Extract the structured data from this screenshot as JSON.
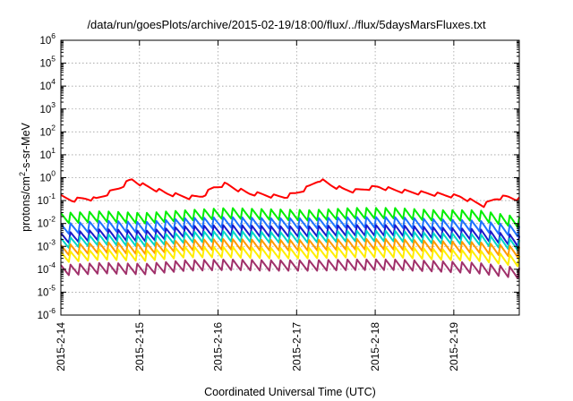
{
  "chart_data": {
    "type": "line",
    "title": "/data/run/goesPlots/archive/2015-02-19/18:00/flux/../flux/5daysMarsFluxes.txt",
    "xlabel": "Coordinated Universal Time (UTC)",
    "ylabel": "protons/cm2-s-sr-MeV",
    "ylabel_parts": {
      "pre": "protons/cm",
      "sup": "2",
      "post": "-s-sr-MeV"
    },
    "y_scale": "log",
    "ylim_exp": [
      -6,
      6
    ],
    "y_ticks": [
      {
        "base": "10",
        "exp": "-6"
      },
      {
        "base": "10",
        "exp": "-5"
      },
      {
        "base": "10",
        "exp": "-4"
      },
      {
        "base": "10",
        "exp": "-3"
      },
      {
        "base": "10",
        "exp": "-2"
      },
      {
        "base": "10",
        "exp": "-1"
      },
      {
        "base": "10",
        "exp": "0"
      },
      {
        "base": "10",
        "exp": "1"
      },
      {
        "base": "10",
        "exp": "2"
      },
      {
        "base": "10",
        "exp": "3"
      },
      {
        "base": "10",
        "exp": "4"
      },
      {
        "base": "10",
        "exp": "5"
      },
      {
        "base": "10",
        "exp": "6"
      }
    ],
    "x_start": "2015-02-14",
    "x_end": "2015-02-19T20:00",
    "x_ticks": [
      "2015-2-14",
      "2015-2-15",
      "2015-2-16",
      "2015-2-17",
      "2015-2-18",
      "2015-2-19"
    ],
    "grid": true,
    "series": [
      {
        "color": "#ff0000",
        "base": 0.13,
        "amp": 0.07,
        "pulses": 28,
        "bumps": [
          [
            0.8,
            0.8
          ],
          [
            1.4,
            0.45
          ],
          [
            2.9,
            0.8
          ]
        ],
        "values": [
          0.14,
          0.1,
          0.12,
          0.11,
          0.2,
          0.35,
          0.8,
          0.45,
          0.3,
          0.2,
          0.16,
          0.13,
          0.15,
          0.35,
          0.5,
          0.3,
          0.2,
          0.18,
          0.15,
          0.14,
          0.2,
          0.35,
          0.8,
          0.45,
          0.3,
          0.25,
          0.32,
          0.38,
          0.3,
          0.25,
          0.22,
          0.2,
          0.18,
          0.16,
          0.14,
          0.09,
          0.06,
          0.12,
          0.14,
          0.11
        ]
      },
      {
        "color": "#00ee00",
        "base": 0.012,
        "amp": 0.008,
        "pulses": 48,
        "values": [
          0.015,
          0.018,
          0.015,
          0.02,
          0.025,
          0.022,
          0.02,
          0.025,
          0.025,
          0.02,
          0.02,
          0.01
        ]
      },
      {
        "color": "#1e73ff",
        "base": 0.006,
        "amp": 0.005,
        "pulses": 48,
        "values": [
          0.005,
          0.007,
          0.006,
          0.009,
          0.01,
          0.009,
          0.009,
          0.01,
          0.01,
          0.008,
          0.007,
          0.004
        ]
      },
      {
        "color": "#1a1acc",
        "base": 0.0018,
        "amp": 0.0018,
        "pulses": 48,
        "values": [
          0.002,
          0.003,
          0.0025,
          0.004,
          0.0045,
          0.004,
          0.004,
          0.0045,
          0.0045,
          0.0035,
          0.003,
          0.0015
        ]
      },
      {
        "color": "#00d7c8",
        "base": 0.0012,
        "amp": 0.0012,
        "pulses": 48,
        "values": [
          0.0012,
          0.0018,
          0.0015,
          0.0022,
          0.0025,
          0.0022,
          0.0022,
          0.0025,
          0.0025,
          0.002,
          0.0018,
          0.001
        ]
      },
      {
        "color": "#ff9a00",
        "base": 0.0006,
        "amp": 0.0006,
        "pulses": 48,
        "values": [
          0.0006,
          0.0008,
          0.0007,
          0.001,
          0.0011,
          0.001,
          0.001,
          0.0011,
          0.0011,
          0.0009,
          0.0008,
          0.0005
        ]
      },
      {
        "color": "#ffee00",
        "base": 0.00025,
        "amp": 0.0003,
        "pulses": 48,
        "values": [
          0.0003,
          0.0004,
          0.00035,
          0.0005,
          0.0005,
          0.00045,
          0.00045,
          0.0005,
          0.0005,
          0.0004,
          0.00035,
          0.0002
        ]
      },
      {
        "color": "#a0306a",
        "base": 8e-05,
        "amp": 0.0001,
        "pulses": 48,
        "values": [
          8e-05,
          0.0001,
          9e-05,
          0.00013,
          0.00014,
          0.00013,
          0.00013,
          0.00014,
          0.00014,
          0.00012,
          0.0001,
          6e-05
        ]
      }
    ]
  }
}
